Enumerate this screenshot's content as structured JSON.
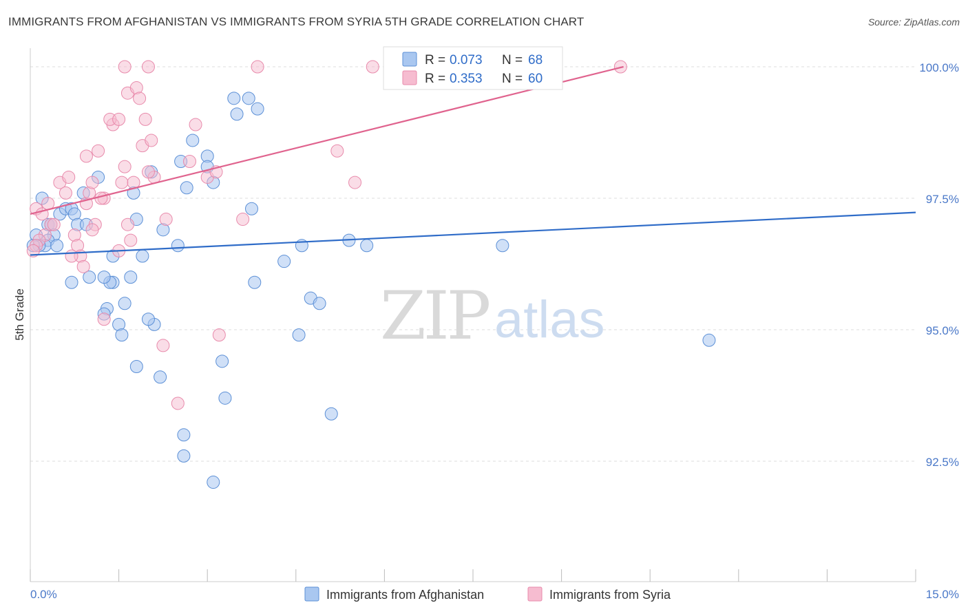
{
  "header": {
    "title": "IMMIGRANTS FROM AFGHANISTAN VS IMMIGRANTS FROM SYRIA 5TH GRADE CORRELATION CHART",
    "source": "Source: ZipAtlas.com"
  },
  "watermark": {
    "zip": "ZIP",
    "atlas": "atlas"
  },
  "colors": {
    "afghanistan_fill": "#a9c7f0",
    "afghanistan_stroke": "#5b8fd6",
    "afghanistan_line": "#2f6cc8",
    "syria_fill": "#f6bcd0",
    "syria_stroke": "#e88aab",
    "syria_line": "#e0638e",
    "tick_label": "#4a78c8",
    "grid": "#dddddd"
  },
  "legend_top": {
    "rows": [
      {
        "r_label": "R =",
        "r_value": "0.073",
        "n_label": "N =",
        "n_value": "68"
      },
      {
        "r_label": "R =",
        "r_value": "0.353",
        "n_label": "N =",
        "n_value": "60"
      }
    ]
  },
  "legend_bottom": {
    "items": [
      "Immigrants from Afghanistan",
      "Immigrants from Syria"
    ]
  },
  "chart_data": {
    "type": "scatter",
    "xlabel": "",
    "ylabel": "5th Grade",
    "xlim": [
      0.0,
      15.0
    ],
    "ylim": [
      90.0,
      100.3
    ],
    "x_tick_labels": [
      "0.0%",
      "15.0%"
    ],
    "y_ticks": [
      100.0,
      97.5,
      95.0,
      92.5
    ],
    "y_tick_labels": [
      "100.0%",
      "97.5%",
      "95.0%",
      "92.5%"
    ],
    "grid": true,
    "legend_position": "top-center",
    "series": [
      {
        "name": "Immigrants from Afghanistan",
        "R": 0.073,
        "N": 68,
        "trend": {
          "x": [
            0.0,
            15.0
          ],
          "y": [
            96.42,
            97.23
          ]
        },
        "points": [
          [
            0.2,
            97.5
          ],
          [
            0.3,
            97.0
          ],
          [
            0.35,
            97.0
          ],
          [
            0.5,
            97.2
          ],
          [
            0.6,
            97.3
          ],
          [
            0.7,
            97.3
          ],
          [
            0.75,
            97.2
          ],
          [
            0.8,
            97.0
          ],
          [
            0.4,
            96.8
          ],
          [
            0.3,
            96.7
          ],
          [
            0.25,
            96.6
          ],
          [
            0.15,
            96.6
          ],
          [
            0.1,
            96.8
          ],
          [
            0.45,
            96.6
          ],
          [
            0.9,
            97.6
          ],
          [
            1.15,
            97.9
          ],
          [
            1.4,
            96.4
          ],
          [
            1.4,
            95.9
          ],
          [
            1.35,
            95.9
          ],
          [
            1.25,
            96.0
          ],
          [
            1.3,
            95.4
          ],
          [
            1.25,
            95.3
          ],
          [
            1.5,
            95.1
          ],
          [
            1.55,
            94.9
          ],
          [
            1.6,
            95.5
          ],
          [
            1.7,
            96.0
          ],
          [
            1.9,
            96.4
          ],
          [
            1.75,
            97.6
          ],
          [
            1.8,
            97.1
          ],
          [
            2.05,
            98.0
          ],
          [
            2.25,
            96.9
          ],
          [
            2.5,
            96.6
          ],
          [
            2.1,
            95.1
          ],
          [
            2.2,
            94.1
          ],
          [
            2.6,
            93.0
          ],
          [
            2.6,
            92.6
          ],
          [
            2.55,
            98.2
          ],
          [
            2.75,
            98.6
          ],
          [
            2.65,
            97.7
          ],
          [
            3.0,
            98.3
          ],
          [
            3.0,
            98.1
          ],
          [
            3.1,
            97.8
          ],
          [
            3.25,
            94.4
          ],
          [
            3.3,
            93.7
          ],
          [
            3.1,
            92.1
          ],
          [
            3.45,
            99.4
          ],
          [
            3.5,
            99.1
          ],
          [
            3.7,
            99.4
          ],
          [
            3.85,
            99.2
          ],
          [
            3.75,
            97.3
          ],
          [
            3.8,
            95.9
          ],
          [
            4.3,
            96.3
          ],
          [
            4.55,
            94.9
          ],
          [
            4.6,
            96.6
          ],
          [
            4.75,
            95.6
          ],
          [
            4.9,
            95.5
          ],
          [
            5.1,
            93.4
          ],
          [
            5.4,
            96.7
          ],
          [
            5.7,
            96.6
          ],
          [
            7.1,
            100.0
          ],
          [
            8.0,
            96.6
          ],
          [
            11.5,
            94.8
          ],
          [
            1.8,
            94.3
          ],
          [
            0.7,
            95.9
          ],
          [
            0.05,
            96.6
          ],
          [
            0.95,
            97.0
          ],
          [
            2.0,
            95.2
          ],
          [
            1.0,
            96.0
          ]
        ]
      },
      {
        "name": "Immigrants from Syria",
        "R": 0.353,
        "N": 60,
        "trend": {
          "x": [
            0.0,
            10.05
          ],
          "y": [
            97.2,
            100.0
          ]
        },
        "points": [
          [
            0.1,
            97.3
          ],
          [
            0.2,
            97.2
          ],
          [
            0.3,
            97.4
          ],
          [
            0.35,
            97.0
          ],
          [
            0.4,
            97.0
          ],
          [
            0.25,
            96.8
          ],
          [
            0.15,
            96.7
          ],
          [
            0.1,
            96.6
          ],
          [
            0.05,
            96.5
          ],
          [
            0.5,
            97.8
          ],
          [
            0.6,
            97.6
          ],
          [
            0.65,
            97.9
          ],
          [
            0.75,
            96.8
          ],
          [
            0.8,
            96.6
          ],
          [
            0.85,
            96.4
          ],
          [
            0.95,
            97.4
          ],
          [
            1.0,
            97.6
          ],
          [
            1.05,
            97.8
          ],
          [
            0.95,
            98.3
          ],
          [
            1.1,
            97.0
          ],
          [
            1.15,
            98.4
          ],
          [
            1.25,
            97.5
          ],
          [
            1.2,
            97.5
          ],
          [
            1.4,
            98.9
          ],
          [
            1.35,
            99.0
          ],
          [
            1.5,
            99.0
          ],
          [
            1.55,
            97.8
          ],
          [
            1.6,
            98.1
          ],
          [
            1.65,
            97.0
          ],
          [
            1.75,
            97.8
          ],
          [
            1.65,
            99.5
          ],
          [
            1.8,
            99.6
          ],
          [
            1.85,
            99.4
          ],
          [
            1.9,
            98.5
          ],
          [
            1.95,
            99.0
          ],
          [
            2.05,
            98.6
          ],
          [
            2.1,
            97.9
          ],
          [
            2.0,
            98.0
          ],
          [
            2.3,
            97.1
          ],
          [
            2.25,
            94.7
          ],
          [
            2.5,
            93.6
          ],
          [
            2.7,
            98.2
          ],
          [
            2.8,
            98.9
          ],
          [
            3.0,
            97.9
          ],
          [
            3.15,
            98.0
          ],
          [
            3.2,
            94.9
          ],
          [
            3.6,
            97.1
          ],
          [
            3.85,
            100.0
          ],
          [
            5.2,
            98.4
          ],
          [
            5.5,
            97.8
          ],
          [
            5.8,
            100.0
          ],
          [
            1.6,
            100.0
          ],
          [
            2.0,
            100.0
          ],
          [
            10.0,
            100.0
          ],
          [
            1.25,
            95.2
          ],
          [
            0.7,
            96.4
          ],
          [
            1.5,
            96.5
          ],
          [
            0.9,
            96.2
          ],
          [
            1.05,
            96.9
          ],
          [
            1.7,
            96.7
          ]
        ]
      }
    ]
  }
}
